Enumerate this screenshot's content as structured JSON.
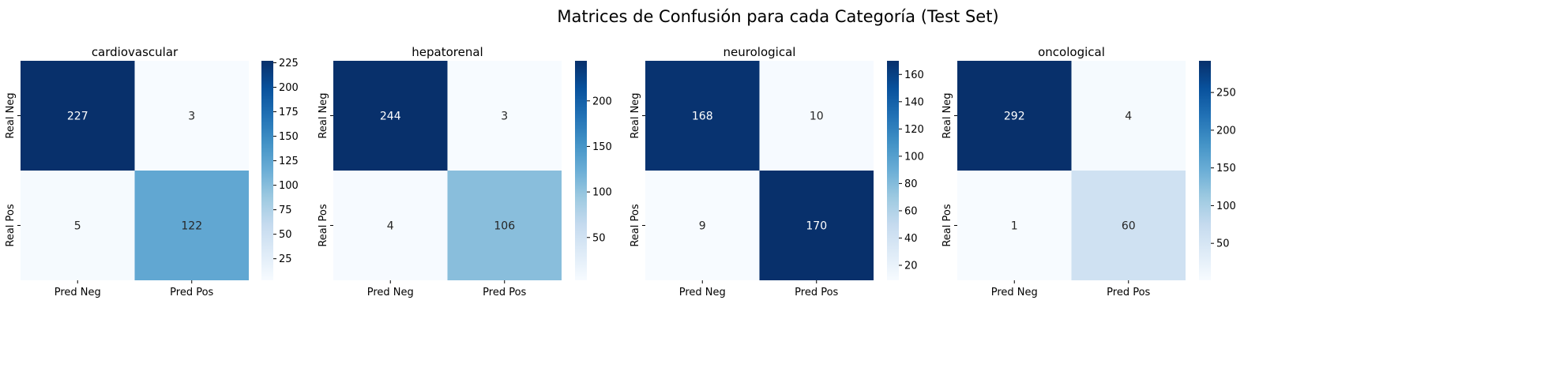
{
  "title": "Matrices de Confusión para cada Categoría (Test Set)",
  "chart_data": [
    {
      "type": "heatmap",
      "title": "cardiovascular",
      "x_categories": [
        "Pred Neg",
        "Pred Pos"
      ],
      "y_categories": [
        "Real Neg",
        "Real Pos"
      ],
      "values": [
        [
          227,
          3
        ],
        [
          5,
          122
        ]
      ],
      "colormap": "Blues",
      "vmin": 3,
      "vmax": 227,
      "colorbar_ticks": [
        25,
        50,
        75,
        100,
        125,
        150,
        175,
        200,
        225
      ]
    },
    {
      "type": "heatmap",
      "title": "hepatorenal",
      "x_categories": [
        "Pred Neg",
        "Pred Pos"
      ],
      "y_categories": [
        "Real Neg",
        "Real Pos"
      ],
      "values": [
        [
          244,
          3
        ],
        [
          4,
          106
        ]
      ],
      "colormap": "Blues",
      "vmin": 3,
      "vmax": 244,
      "colorbar_ticks": [
        50,
        100,
        150,
        200
      ]
    },
    {
      "type": "heatmap",
      "title": "neurological",
      "x_categories": [
        "Pred Neg",
        "Pred Pos"
      ],
      "y_categories": [
        "Real Neg",
        "Real Pos"
      ],
      "values": [
        [
          168,
          10
        ],
        [
          9,
          170
        ]
      ],
      "colormap": "Blues",
      "vmin": 9,
      "vmax": 170,
      "colorbar_ticks": [
        20,
        40,
        60,
        80,
        100,
        120,
        140,
        160
      ]
    },
    {
      "type": "heatmap",
      "title": "oncological",
      "x_categories": [
        "Pred Neg",
        "Pred Pos"
      ],
      "y_categories": [
        "Real Neg",
        "Real Pos"
      ],
      "values": [
        [
          292,
          4
        ],
        [
          1,
          60
        ]
      ],
      "colormap": "Blues",
      "vmin": 1,
      "vmax": 292,
      "colorbar_ticks": [
        50,
        100,
        150,
        200,
        250
      ]
    }
  ]
}
